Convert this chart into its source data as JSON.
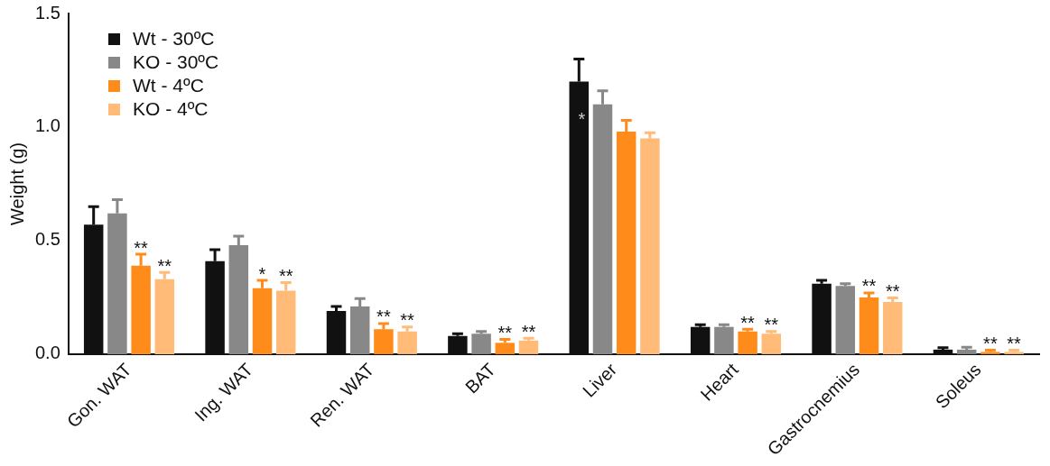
{
  "chart_data": {
    "type": "bar",
    "ylabel": "Weight (g)",
    "categories": [
      "Gon. WAT",
      "Ing. WAT",
      "Ren. WAT",
      "BAT",
      "Liver",
      "Heart",
      "Gastrocnemius",
      "Soleus"
    ],
    "series": [
      {
        "name": "Wt - 30ºC",
        "color": "#111111",
        "values": [
          0.57,
          0.41,
          0.19,
          0.08,
          1.2,
          0.12,
          0.31,
          0.02
        ],
        "errors": [
          0.08,
          0.05,
          0.02,
          0.01,
          0.1,
          0.01,
          0.015,
          0.008
        ]
      },
      {
        "name": "KO - 30ºC",
        "color": "#888888",
        "values": [
          0.62,
          0.48,
          0.21,
          0.09,
          1.1,
          0.12,
          0.3,
          0.02
        ],
        "errors": [
          0.06,
          0.04,
          0.035,
          0.01,
          0.06,
          0.01,
          0.01,
          0.01
        ]
      },
      {
        "name": "Wt - 4ºC",
        "color": "#ff8c1a",
        "values": [
          0.39,
          0.29,
          0.11,
          0.05,
          0.98,
          0.1,
          0.25,
          0.01
        ],
        "errors": [
          0.05,
          0.035,
          0.025,
          0.015,
          0.05,
          0.01,
          0.02,
          0.008
        ],
        "value_labels": [
          "**",
          "*",
          "**",
          "**",
          null,
          "**",
          "**",
          "**"
        ]
      },
      {
        "name": "KO - 4ºC",
        "color": "#ffbb77",
        "values": [
          0.33,
          0.28,
          0.1,
          0.06,
          0.95,
          0.09,
          0.23,
          0.01
        ],
        "errors": [
          0.03,
          0.035,
          0.02,
          0.01,
          0.025,
          0.01,
          0.018,
          0.008
        ],
        "value_labels": [
          "**",
          "**",
          "**",
          "**",
          null,
          "**",
          "**",
          "**"
        ]
      }
    ],
    "annotations": [
      {
        "text": "*",
        "x": "Liver",
        "y": 1.03
      }
    ],
    "ylim": [
      0,
      1.5
    ],
    "yticks": [
      {
        "value": 0,
        "label": "0.0"
      },
      {
        "value": 0.5,
        "label": "0.5"
      },
      {
        "value": 1,
        "label": "1.0"
      },
      {
        "value": 1.5,
        "label": "1.5"
      }
    ],
    "grid": false,
    "legend": "top left"
  }
}
